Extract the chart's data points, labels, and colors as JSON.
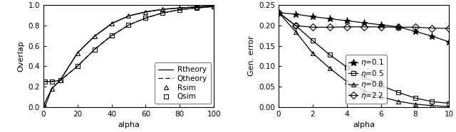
{
  "left": {
    "Rtheory_x": [
      0,
      2,
      5,
      10,
      15,
      20,
      25,
      30,
      35,
      40,
      50,
      60,
      70,
      80,
      90,
      100
    ],
    "Rtheory_y": [
      0.005,
      0.08,
      0.18,
      0.265,
      0.4,
      0.53,
      0.615,
      0.695,
      0.755,
      0.82,
      0.895,
      0.935,
      0.96,
      0.974,
      0.984,
      0.992
    ],
    "Qtheory_x": [
      0,
      2,
      5,
      10,
      15,
      20,
      25,
      30,
      35,
      40,
      50,
      60,
      70,
      80,
      90,
      100
    ],
    "Qtheory_y": [
      0.25,
      0.25,
      0.25,
      0.262,
      0.33,
      0.4,
      0.485,
      0.565,
      0.635,
      0.7,
      0.805,
      0.875,
      0.925,
      0.957,
      0.974,
      0.988
    ],
    "Rsim_x": [
      1,
      5,
      10,
      20,
      30,
      40,
      50,
      60,
      70,
      80,
      90,
      100
    ],
    "Rsim_y": [
      0.005,
      0.18,
      0.265,
      0.53,
      0.695,
      0.82,
      0.895,
      0.935,
      0.96,
      0.974,
      0.984,
      0.992
    ],
    "Qsim_x": [
      1,
      5,
      10,
      20,
      30,
      40,
      50,
      60,
      70,
      80,
      90,
      100
    ],
    "Qsim_y": [
      0.25,
      0.25,
      0.262,
      0.4,
      0.565,
      0.7,
      0.805,
      0.875,
      0.925,
      0.957,
      0.974,
      0.988
    ],
    "xlabel": "alpha",
    "ylabel": "Overlap",
    "xlim": [
      0,
      100
    ],
    "ylim": [
      0,
      1
    ],
    "yticks": [
      0,
      0.2,
      0.4,
      0.6,
      0.8,
      1.0
    ],
    "xticks": [
      0,
      20,
      40,
      60,
      80,
      100
    ]
  },
  "right": {
    "eta01_x": [
      0,
      1,
      2,
      3,
      4,
      5,
      6,
      7,
      8,
      9,
      10
    ],
    "eta01_y": [
      0.232,
      0.228,
      0.222,
      0.217,
      0.212,
      0.207,
      0.202,
      0.197,
      0.186,
      0.174,
      0.16
    ],
    "eta05_x": [
      0,
      1,
      2,
      3,
      4,
      5,
      6,
      7,
      8,
      9,
      10
    ],
    "eta05_y": [
      0.232,
      0.2,
      0.163,
      0.128,
      0.098,
      0.074,
      0.053,
      0.036,
      0.022,
      0.013,
      0.009
    ],
    "eta08_x": [
      0,
      1,
      2,
      3,
      4,
      5,
      6,
      7,
      8,
      9,
      10
    ],
    "eta08_y": [
      0.232,
      0.185,
      0.132,
      0.095,
      0.062,
      0.04,
      0.025,
      0.014,
      0.007,
      0.003,
      0.001
    ],
    "eta22_x": [
      0,
      1,
      2,
      3,
      4,
      5,
      6,
      7,
      8,
      9,
      10
    ],
    "eta22_y": [
      0.232,
      0.2,
      0.196,
      0.196,
      0.197,
      0.197,
      0.197,
      0.196,
      0.196,
      0.194,
      0.193
    ],
    "xlabel": "alpha",
    "ylabel": "Gen. error",
    "xlim": [
      0,
      10
    ],
    "ylim": [
      0,
      0.25
    ],
    "yticks": [
      0,
      0.05,
      0.1,
      0.15,
      0.2,
      0.25
    ],
    "xticks": [
      0,
      2,
      4,
      6,
      8,
      10
    ]
  },
  "line_color": "#000000",
  "fontsize": 8,
  "legend_fontsize": 7.5,
  "tick_fontsize": 7.5
}
